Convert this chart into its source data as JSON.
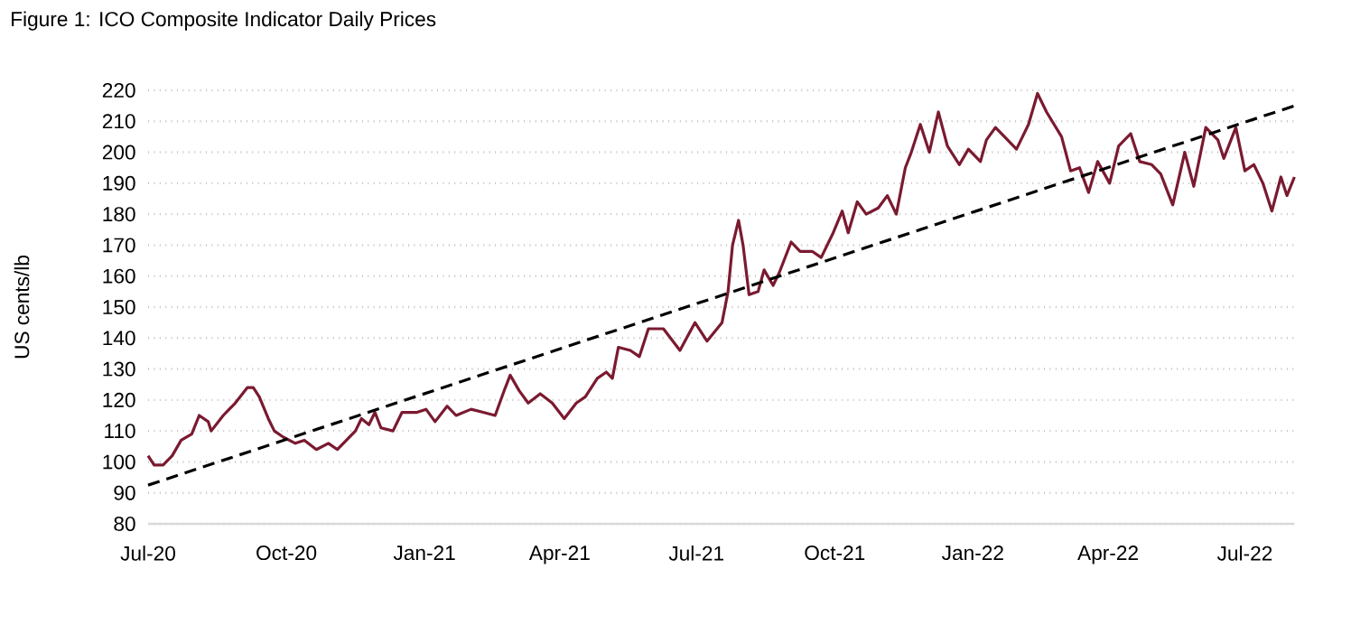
{
  "chart_data": {
    "type": "line",
    "title": "Figure 1: ICO Composite Indicator Daily Prices",
    "ylabel": "US cents/lb",
    "xlim": [
      "2020-07-01",
      "2022-08-03"
    ],
    "ylim": [
      80,
      220
    ],
    "xticks": [
      {
        "value": "2020-07-01",
        "label": "Jul-20"
      },
      {
        "value": "2020-10-01",
        "label": "Oct-20"
      },
      {
        "value": "2021-01-01",
        "label": "Jan-21"
      },
      {
        "value": "2021-04-01",
        "label": "Apr-21"
      },
      {
        "value": "2021-07-01",
        "label": "Jul-21"
      },
      {
        "value": "2021-10-01",
        "label": "Oct-21"
      },
      {
        "value": "2022-01-01",
        "label": "Jan-22"
      },
      {
        "value": "2022-04-01",
        "label": "Apr-22"
      },
      {
        "value": "2022-07-01",
        "label": "Jul-22"
      }
    ],
    "yticks": [
      80,
      90,
      100,
      110,
      120,
      130,
      140,
      150,
      160,
      170,
      180,
      190,
      200,
      210,
      220
    ],
    "grid": "y",
    "series": [
      {
        "color": "#7a1a30",
        "line_style": "solid",
        "x": [
          "2020-07-01",
          "2020-07-05",
          "2020-07-11",
          "2020-07-17",
          "2020-07-23",
          "2020-07-30",
          "2020-08-04",
          "2020-08-10",
          "2020-08-12",
          "2020-08-20",
          "2020-08-28",
          "2020-09-05",
          "2020-09-09",
          "2020-09-13",
          "2020-09-19",
          "2020-09-23",
          "2020-09-29",
          "2020-10-07",
          "2020-10-13",
          "2020-10-21",
          "2020-10-29",
          "2020-11-04",
          "2020-11-10",
          "2020-11-16",
          "2020-11-20",
          "2020-11-25",
          "2020-11-29",
          "2020-12-03",
          "2020-12-11",
          "2020-12-17",
          "2020-12-27",
          "2021-01-02",
          "2021-01-08",
          "2021-01-16",
          "2021-01-22",
          "2021-02-01",
          "2021-02-09",
          "2021-02-17",
          "2021-02-23",
          "2021-02-27",
          "2021-03-05",
          "2021-03-11",
          "2021-03-19",
          "2021-03-27",
          "2021-04-04",
          "2021-04-12",
          "2021-04-18",
          "2021-04-26",
          "2021-05-02",
          "2021-05-06",
          "2021-05-10",
          "2021-05-18",
          "2021-05-24",
          "2021-05-30",
          "2021-06-09",
          "2021-06-20",
          "2021-06-30",
          "2021-07-08",
          "2021-07-18",
          "2021-07-22",
          "2021-07-25",
          "2021-07-29",
          "2021-08-01",
          "2021-08-05",
          "2021-08-11",
          "2021-08-15",
          "2021-08-21",
          "2021-08-25",
          "2021-09-02",
          "2021-09-08",
          "2021-09-16",
          "2021-09-22",
          "2021-09-30",
          "2021-10-06",
          "2021-10-10",
          "2021-10-16",
          "2021-10-22",
          "2021-10-30",
          "2021-11-05",
          "2021-11-11",
          "2021-11-17",
          "2021-11-21",
          "2021-11-27",
          "2021-12-03",
          "2021-12-09",
          "2021-12-15",
          "2021-12-23",
          "2021-12-29",
          "2022-01-06",
          "2022-01-10",
          "2022-01-16",
          "2022-01-22",
          "2022-01-30",
          "2022-02-07",
          "2022-02-13",
          "2022-02-19",
          "2022-03-01",
          "2022-03-07",
          "2022-03-13",
          "2022-03-19",
          "2022-03-25",
          "2022-04-02",
          "2022-04-08",
          "2022-04-16",
          "2022-04-22",
          "2022-04-30",
          "2022-05-06",
          "2022-05-14",
          "2022-05-22",
          "2022-05-28",
          "2022-06-05",
          "2022-06-13",
          "2022-06-17",
          "2022-06-25",
          "2022-07-01",
          "2022-07-07",
          "2022-07-13",
          "2022-07-19",
          "2022-07-25",
          "2022-07-29",
          "2022-08-03"
        ],
        "values": [
          102,
          99,
          99,
          102,
          107,
          109,
          115,
          113,
          110,
          115,
          119,
          124,
          124,
          121,
          114,
          110,
          108,
          106,
          107,
          104,
          106,
          104,
          107,
          110,
          114,
          112,
          116,
          111,
          110,
          116,
          116,
          117,
          113,
          118,
          115,
          117,
          116,
          115,
          123,
          128,
          123,
          119,
          122,
          119,
          114,
          119,
          121,
          127,
          129,
          127,
          137,
          136,
          134,
          143,
          143,
          136,
          145,
          139,
          145,
          155,
          170,
          178,
          170,
          154,
          155,
          162,
          157,
          161,
          171,
          168,
          168,
          166,
          174,
          181,
          174,
          184,
          180,
          182,
          186,
          180,
          195,
          200,
          209,
          200,
          213,
          202,
          196,
          201,
          197,
          204,
          208,
          205,
          201,
          209,
          219,
          213,
          205,
          194,
          195,
          187,
          197,
          190,
          202,
          206,
          197,
          196,
          193,
          183,
          200,
          189,
          208,
          204,
          198,
          208,
          194,
          196,
          190,
          181,
          192,
          186,
          192
        ]
      },
      {
        "color": "#000000",
        "line_style": "dashed",
        "x": [
          "2020-07-01",
          "2022-08-03"
        ],
        "values": [
          92.5,
          215
        ]
      }
    ]
  }
}
